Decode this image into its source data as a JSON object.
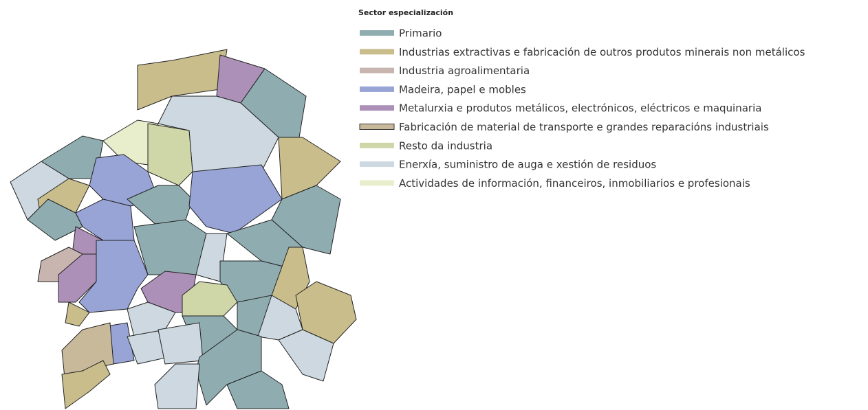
{
  "legend": {
    "title": "Sector especialización",
    "items": [
      {
        "label": "Primario",
        "color": "#8fadb0"
      },
      {
        "label": "Industrias extractivas e fabricación de outros produtos minerais non metálicos",
        "color": "#c9bd8c"
      },
      {
        "label": "Industria agroalimentaria",
        "color": "#c8b5b0"
      },
      {
        "label": "Madeira, papel e mobles",
        "color": "#98a4d6"
      },
      {
        "label": "Metalurxia e produtos metálicos, electrónicos, eléctricos  e maquinaria",
        "color": "#ad90b8"
      },
      {
        "label": "Fabricación de material de transporte e grandes reparacións industriais",
        "color": "#c8b99b"
      },
      {
        "label": "Resto da industria",
        "color": "#cfd6a8"
      },
      {
        "label": "Enerxía, suministro de auga e xestión de residuos",
        "color": "#cdd8e0"
      },
      {
        "label": "Actividades de información, financeiros, inmobiliarios e profesionais",
        "color": "#e8eecb"
      }
    ]
  }
}
